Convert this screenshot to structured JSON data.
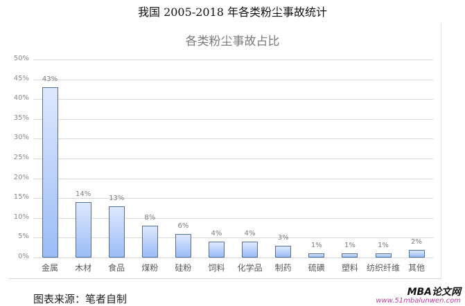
{
  "document": {
    "title": "我国 2005-2018 年各类粉尘事故统计",
    "source": "图表来源：笔者自制"
  },
  "watermark": {
    "title": "MBA论文网",
    "url": "www.51mbalunwen.com"
  },
  "colors": {
    "bar_top": "#dde8fe",
    "bar_bottom": "#9bbcf6",
    "bar_border": "#4f6f9f",
    "gridline": "#d9d9d9"
  },
  "chart_data": {
    "type": "bar",
    "title": "各类粉尘事故占比",
    "xlabel": "",
    "ylabel": "",
    "ylim": [
      0,
      0.5
    ],
    "yticks": [
      "0%",
      "5%",
      "10%",
      "15%",
      "20%",
      "25%",
      "30%",
      "35%",
      "40%",
      "45%",
      "50%"
    ],
    "grid": true,
    "legend": null,
    "categories": [
      "金属",
      "木材",
      "食品",
      "煤粉",
      "硅粉",
      "饲料",
      "化学品",
      "制药",
      "硫磺",
      "塑料",
      "纺织纤维",
      "其他"
    ],
    "values": [
      43,
      14,
      13,
      8,
      6,
      4,
      4,
      3,
      1,
      1,
      1,
      2
    ],
    "value_labels": [
      "43%",
      "14%",
      "13%",
      "8%",
      "6%",
      "4%",
      "4%",
      "3%",
      "1%",
      "1%",
      "1%",
      "2%"
    ],
    "unit": "%"
  }
}
